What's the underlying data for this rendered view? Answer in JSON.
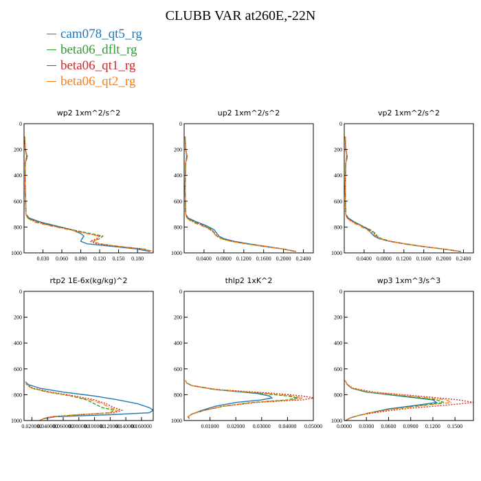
{
  "title": "CLUBB VAR at260E,-22N",
  "legend": [
    {
      "name": "cam078_qt5_rg",
      "color": "#1f77b4"
    },
    {
      "name": "beta06_dflt_rg",
      "color": "#2ca02c"
    },
    {
      "name": "beta06_qt1_rg",
      "color": "#d62728"
    },
    {
      "name": "beta06_qt2_rg",
      "color": "#ff7f0e"
    }
  ],
  "series_styles": [
    {
      "color": "#1f77b4",
      "dash": "none"
    },
    {
      "color": "#2ca02c",
      "dash": "5 2"
    },
    {
      "color": "#d62728",
      "dash": "2 2"
    },
    {
      "color": "#ff7f0e",
      "dash": "6 2 1 2"
    }
  ],
  "chart_data": [
    {
      "type": "line",
      "title": "wp2   1xm^2/s^2",
      "xlim": [
        0,
        0.205
      ],
      "ylim": [
        1000,
        0
      ],
      "xticks": [
        0.03,
        0.06,
        0.09,
        0.12,
        0.15,
        0.18
      ],
      "xtick_labels": [
        "0.030",
        "0.060",
        "0.090",
        "0.120",
        "0.150",
        "0.180"
      ],
      "yticks": [
        0,
        200,
        400,
        600,
        800,
        1000
      ],
      "ytick_labels": [
        "0",
        "200",
        "400",
        "600",
        "800",
        "1000"
      ],
      "y": [
        100,
        200,
        250,
        280,
        300,
        500,
        700,
        730,
        760,
        790,
        820,
        850,
        870,
        890,
        910,
        930,
        950,
        970,
        990
      ],
      "series": [
        {
          "name": "cam078_qt5_rg",
          "values": [
            0.001,
            0.002,
            0.004,
            0.003,
            0.002,
            0.002,
            0.003,
            0.008,
            0.025,
            0.05,
            0.075,
            0.09,
            0.095,
            0.092,
            0.09,
            0.1,
            0.14,
            0.18,
            0.2
          ]
        },
        {
          "name": "beta06_dflt_rg",
          "values": [
            0.001,
            0.002,
            0.005,
            0.004,
            0.002,
            0.002,
            0.003,
            0.006,
            0.02,
            0.045,
            0.075,
            0.105,
            0.125,
            0.12,
            0.11,
            0.12,
            0.15,
            0.19,
            0.205
          ]
        },
        {
          "name": "beta06_qt1_rg",
          "values": [
            0.001,
            0.002,
            0.005,
            0.004,
            0.002,
            0.002,
            0.003,
            0.006,
            0.02,
            0.045,
            0.075,
            0.1,
            0.12,
            0.115,
            0.105,
            0.115,
            0.15,
            0.19,
            0.205
          ]
        },
        {
          "name": "beta06_qt2_rg",
          "values": [
            0.001,
            0.002,
            0.005,
            0.004,
            0.002,
            0.002,
            0.003,
            0.005,
            0.015,
            0.04,
            0.07,
            0.1,
            0.118,
            0.118,
            0.11,
            0.12,
            0.15,
            0.19,
            0.205
          ]
        }
      ]
    },
    {
      "type": "line",
      "title": "up2   1xm^2/s^2",
      "xlim": [
        0,
        0.26
      ],
      "ylim": [
        1000,
        0
      ],
      "xticks": [
        0.04,
        0.08,
        0.12,
        0.16,
        0.2,
        0.24
      ],
      "xtick_labels": [
        "0.0400",
        "0.0800",
        "0.1200",
        "0.1600",
        "0.2000",
        "0.2400"
      ],
      "yticks": [
        0,
        200,
        400,
        600,
        800,
        1000
      ],
      "ytick_labels": [
        "0",
        "200",
        "400",
        "600",
        "800",
        "1000"
      ],
      "y": [
        100,
        200,
        250,
        280,
        300,
        500,
        700,
        730,
        760,
        790,
        820,
        850,
        870,
        890,
        910,
        930,
        950,
        970,
        990
      ],
      "series": [
        {
          "name": "cam078_qt5_rg",
          "values": [
            0.002,
            0.003,
            0.005,
            0.004,
            0.003,
            0.002,
            0.003,
            0.008,
            0.025,
            0.045,
            0.06,
            0.066,
            0.07,
            0.08,
            0.1,
            0.13,
            0.165,
            0.2,
            0.225
          ]
        },
        {
          "name": "beta06_dflt_rg",
          "values": [
            0.002,
            0.003,
            0.006,
            0.005,
            0.003,
            0.002,
            0.003,
            0.006,
            0.02,
            0.04,
            0.055,
            0.062,
            0.066,
            0.075,
            0.095,
            0.125,
            0.16,
            0.2,
            0.225
          ]
        },
        {
          "name": "beta06_qt1_rg",
          "values": [
            0.002,
            0.003,
            0.006,
            0.005,
            0.003,
            0.002,
            0.003,
            0.006,
            0.02,
            0.04,
            0.055,
            0.062,
            0.066,
            0.075,
            0.095,
            0.125,
            0.16,
            0.2,
            0.225
          ]
        },
        {
          "name": "beta06_qt2_rg",
          "values": [
            0.002,
            0.003,
            0.006,
            0.005,
            0.003,
            0.002,
            0.003,
            0.005,
            0.015,
            0.035,
            0.052,
            0.06,
            0.065,
            0.074,
            0.093,
            0.123,
            0.16,
            0.2,
            0.225
          ]
        }
      ]
    },
    {
      "type": "line",
      "title": "vp2   1xm^2/s^2",
      "xlim": [
        0,
        0.26
      ],
      "ylim": [
        1000,
        0
      ],
      "xticks": [
        0.04,
        0.08,
        0.12,
        0.16,
        0.2,
        0.24
      ],
      "xtick_labels": [
        "0.0400",
        "0.0800",
        "0.1200",
        "0.1600",
        "0.2000",
        "0.2400"
      ],
      "yticks": [
        0,
        200,
        400,
        600,
        800,
        1000
      ],
      "ytick_labels": [
        "0",
        "200",
        "400",
        "600",
        "800",
        "1000"
      ],
      "y": [
        100,
        200,
        250,
        280,
        300,
        500,
        700,
        730,
        760,
        790,
        820,
        850,
        870,
        890,
        910,
        930,
        950,
        970,
        990
      ],
      "series": [
        {
          "name": "cam078_qt5_rg",
          "values": [
            0.002,
            0.003,
            0.005,
            0.004,
            0.003,
            0.002,
            0.003,
            0.008,
            0.02,
            0.035,
            0.048,
            0.055,
            0.06,
            0.07,
            0.09,
            0.12,
            0.155,
            0.2,
            0.235
          ]
        },
        {
          "name": "beta06_dflt_rg",
          "values": [
            0.002,
            0.003,
            0.006,
            0.005,
            0.003,
            0.002,
            0.003,
            0.006,
            0.018,
            0.035,
            0.052,
            0.063,
            0.066,
            0.075,
            0.093,
            0.123,
            0.158,
            0.2,
            0.235
          ]
        },
        {
          "name": "beta06_qt1_rg",
          "values": [
            0.002,
            0.003,
            0.006,
            0.005,
            0.003,
            0.002,
            0.003,
            0.006,
            0.018,
            0.035,
            0.05,
            0.06,
            0.064,
            0.073,
            0.092,
            0.122,
            0.158,
            0.2,
            0.235
          ]
        },
        {
          "name": "beta06_qt2_rg",
          "values": [
            0.002,
            0.003,
            0.006,
            0.005,
            0.003,
            0.002,
            0.003,
            0.005,
            0.015,
            0.03,
            0.045,
            0.057,
            0.063,
            0.072,
            0.091,
            0.121,
            0.157,
            0.2,
            0.235
          ]
        }
      ]
    },
    {
      "type": "line",
      "title": "rtp2   1E-6x(kg/kg)^2",
      "xlim": [
        0.01,
        0.175
      ],
      "ylim": [
        1000,
        0
      ],
      "xticks": [
        0.02,
        0.04,
        0.06,
        0.08,
        0.1,
        0.12,
        0.14,
        0.16
      ],
      "xtick_labels": [
        "0.020000",
        "0.040000",
        "0.060000",
        "0.080000",
        "0.100000",
        "0.120000",
        "0.140000",
        "0.160000"
      ],
      "yticks": [
        0,
        200,
        400,
        600,
        800,
        1000
      ],
      "ytick_labels": [
        "0",
        "200",
        "400",
        "600",
        "800",
        "1000"
      ],
      "y": [
        700,
        720,
        750,
        780,
        810,
        840,
        870,
        900,
        920,
        940,
        955,
        970,
        985,
        1000
      ],
      "series": [
        {
          "name": "cam078_qt5_rg",
          "values": [
            0.012,
            0.015,
            0.03,
            0.06,
            0.1,
            0.13,
            0.155,
            0.17,
            0.175,
            0.17,
            0.12,
            0.05,
            0.035,
            0.03
          ]
        },
        {
          "name": "beta06_dflt_rg",
          "values": [
            0.012,
            0.013,
            0.02,
            0.04,
            0.07,
            0.09,
            0.1,
            0.11,
            0.125,
            0.12,
            0.08,
            0.045,
            0.035,
            0.03
          ]
        },
        {
          "name": "beta06_qt1_rg",
          "values": [
            0.012,
            0.013,
            0.022,
            0.045,
            0.075,
            0.1,
            0.115,
            0.125,
            0.135,
            0.125,
            0.08,
            0.045,
            0.035,
            0.03
          ]
        },
        {
          "name": "beta06_qt2_rg",
          "values": [
            0.012,
            0.013,
            0.02,
            0.042,
            0.072,
            0.095,
            0.11,
            0.12,
            0.13,
            0.122,
            0.08,
            0.045,
            0.035,
            0.03
          ]
        }
      ]
    },
    {
      "type": "line",
      "title": "thlp2   1xK^2",
      "xlim": [
        0,
        0.05
      ],
      "ylim": [
        1000,
        0
      ],
      "xticks": [
        0.01,
        0.02,
        0.03,
        0.04,
        0.05
      ],
      "xtick_labels": [
        "0.01000",
        "0.02000",
        "0.03000",
        "0.04000",
        "0.05000"
      ],
      "yticks": [
        0,
        200,
        400,
        600,
        800,
        1000
      ],
      "ytick_labels": [
        "0",
        "200",
        "400",
        "600",
        "800",
        "1000"
      ],
      "y": [
        690,
        710,
        730,
        760,
        790,
        810,
        825,
        840,
        860,
        890,
        920,
        950,
        970,
        985
      ],
      "series": [
        {
          "name": "cam078_qt5_rg",
          "values": [
            0.0005,
            0.001,
            0.003,
            0.012,
            0.028,
            0.033,
            0.034,
            0.03,
            0.02,
            0.012,
            0.007,
            0.003,
            0.0015,
            0.002
          ]
        },
        {
          "name": "beta06_dflt_rg",
          "values": [
            0.0005,
            0.001,
            0.003,
            0.012,
            0.03,
            0.04,
            0.044,
            0.04,
            0.026,
            0.015,
            0.008,
            0.003,
            0.0015,
            0.002
          ]
        },
        {
          "name": "beta06_qt1_rg",
          "values": [
            0.0005,
            0.001,
            0.003,
            0.013,
            0.035,
            0.046,
            0.05,
            0.046,
            0.028,
            0.015,
            0.008,
            0.003,
            0.0015,
            0.002
          ]
        },
        {
          "name": "beta06_qt2_rg",
          "values": [
            0.0005,
            0.001,
            0.003,
            0.012,
            0.032,
            0.042,
            0.046,
            0.042,
            0.027,
            0.015,
            0.008,
            0.003,
            0.0015,
            0.002
          ]
        }
      ]
    },
    {
      "type": "line",
      "title": "wp3   1xm^3/s^3",
      "xlim": [
        0,
        0.175
      ],
      "ylim": [
        1000,
        0
      ],
      "xticks": [
        0,
        0.03,
        0.06,
        0.09,
        0.12,
        0.15
      ],
      "xtick_labels": [
        "0.0000",
        "0.0300",
        "0.0600",
        "0.0900",
        "0.1200",
        "0.1500"
      ],
      "yticks": [
        0,
        200,
        400,
        600,
        800,
        1000
      ],
      "ytick_labels": [
        "0",
        "200",
        "400",
        "600",
        "800",
        "1000"
      ],
      "y": [
        690,
        720,
        750,
        780,
        810,
        840,
        860,
        880,
        910,
        940,
        960,
        980,
        1000
      ],
      "series": [
        {
          "name": "cam078_qt5_rg",
          "values": [
            0.001,
            0.004,
            0.01,
            0.03,
            0.075,
            0.12,
            0.125,
            0.1,
            0.06,
            0.035,
            0.02,
            0.008,
            0.002
          ]
        },
        {
          "name": "beta06_dflt_rg",
          "values": [
            0.001,
            0.004,
            0.01,
            0.03,
            0.08,
            0.125,
            0.135,
            0.11,
            0.065,
            0.035,
            0.02,
            0.008,
            0.002
          ]
        },
        {
          "name": "beta06_qt1_rg",
          "values": [
            0.001,
            0.004,
            0.012,
            0.04,
            0.1,
            0.155,
            0.175,
            0.14,
            0.08,
            0.04,
            0.02,
            0.008,
            0.002
          ]
        },
        {
          "name": "beta06_qt2_rg",
          "values": [
            0.001,
            0.004,
            0.011,
            0.035,
            0.09,
            0.138,
            0.145,
            0.115,
            0.068,
            0.036,
            0.02,
            0.008,
            0.002
          ]
        }
      ]
    }
  ]
}
